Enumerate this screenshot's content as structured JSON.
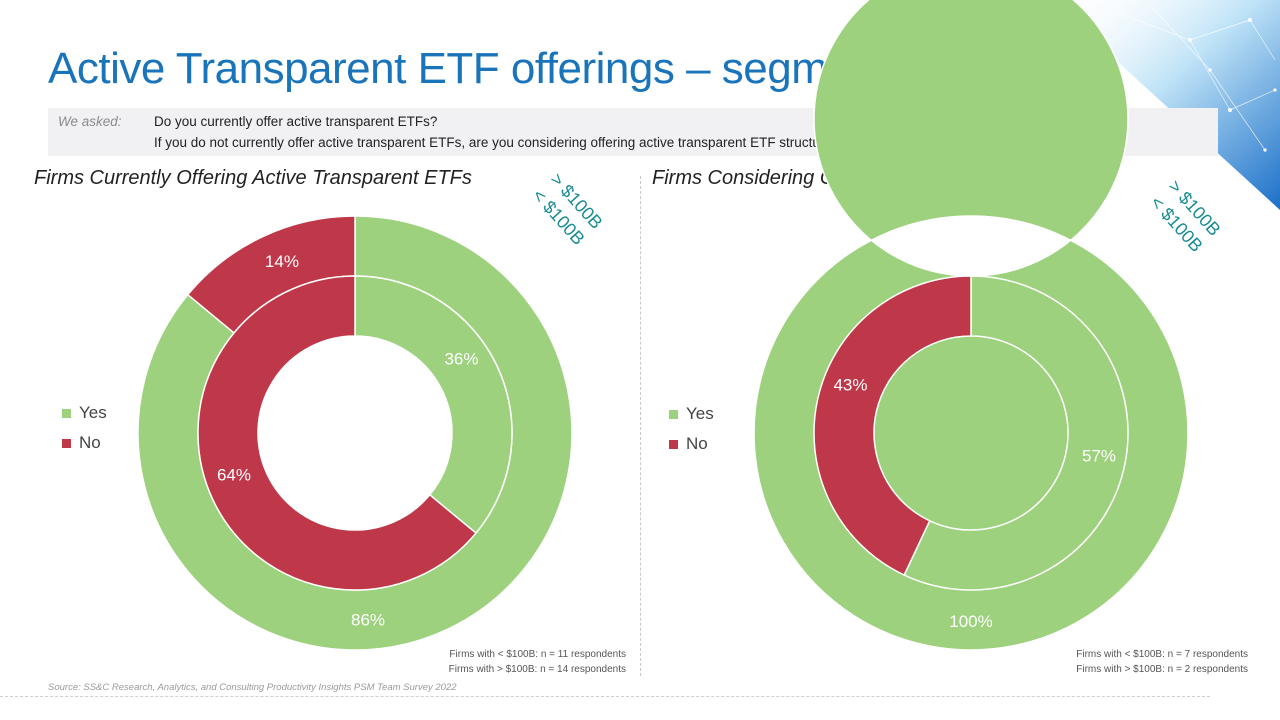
{
  "title": "Active Transparent ETF offerings – segmented",
  "asked": {
    "label": "We asked:",
    "question1": "Do you currently offer active transparent ETFs?",
    "question2": "If you do not currently offer active transparent ETFs, are you considering offering active transparent ETF structures in CY 2023?"
  },
  "colors": {
    "yes": "#9dd17d",
    "no": "#bf384a",
    "title": "#1a74b9",
    "ring_label": "#1a8c92"
  },
  "legend": {
    "yes": "Yes",
    "no": "No"
  },
  "source": "Source: SS&C Research, Analytics, and Consulting Productivity Insights PSM Team Survey 2022",
  "chart_data": [
    {
      "type": "donut",
      "title": "Firms Currently Offering Active Transparent  ETFs",
      "ring_labels": {
        "outer": "> $100B",
        "inner": "< $100B"
      },
      "categories": [
        "Yes",
        "No"
      ],
      "series": [
        {
          "name": "> $100B",
          "ring": "outer",
          "values": [
            86,
            14
          ],
          "labels": [
            "86%",
            "14%"
          ]
        },
        {
          "name": "< $100B",
          "ring": "inner",
          "values": [
            36,
            64
          ],
          "labels": [
            "36%",
            "64%"
          ]
        }
      ],
      "notes": [
        "Firms with < $100B: n = 11 respondents",
        "Firms with > $100B: n = 14 respondents"
      ]
    },
    {
      "type": "donut",
      "title": "Firms Considering Offering Active Transparent ETFs",
      "ring_labels": {
        "outer": "> $100B",
        "inner": "< $100B"
      },
      "categories": [
        "Yes",
        "No"
      ],
      "series": [
        {
          "name": "> $100B",
          "ring": "outer",
          "values": [
            100,
            0
          ],
          "labels": [
            "100%",
            ""
          ]
        },
        {
          "name": "< $100B",
          "ring": "inner",
          "values": [
            57,
            43
          ],
          "labels": [
            "57%",
            "43%"
          ]
        }
      ],
      "notes": [
        "Firms with < $100B: n = 7 respondents",
        "Firms with > $100B: n = 2 respondents"
      ]
    }
  ]
}
